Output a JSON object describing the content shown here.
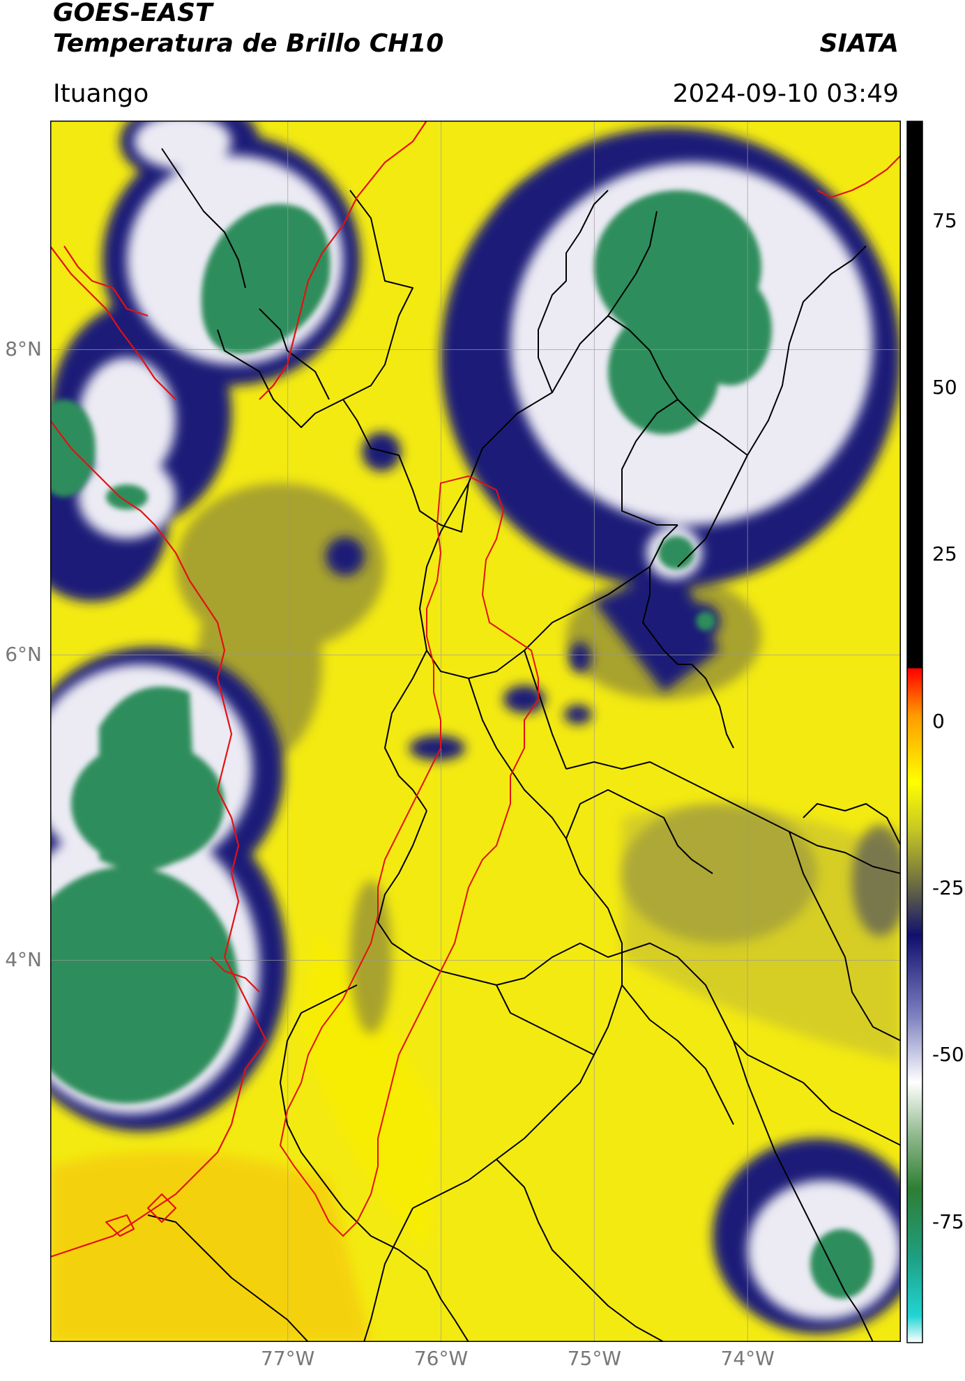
{
  "header": {
    "line1": "GOES-EAST",
    "line2": "Temperatura de Brillo CH10",
    "org": "SIATA",
    "place": "Ituango",
    "timestamp": "2024-09-10 03:49"
  },
  "map": {
    "lat_range": [
      1.5,
      9.5
    ],
    "lon_range": [
      -78.55,
      -73.0
    ],
    "lat_ticks": [
      {
        "value": 8,
        "label": "8°N"
      },
      {
        "value": 6,
        "label": "6°N"
      },
      {
        "value": 4,
        "label": "4°N"
      }
    ],
    "lon_ticks": [
      {
        "value": -77,
        "label": "77°W"
      },
      {
        "value": -76,
        "label": "76°W"
      },
      {
        "value": -75,
        "label": "75°W"
      },
      {
        "value": -74,
        "label": "74°W"
      }
    ],
    "grid": true,
    "colors": {
      "background_warm": "#f3ea12",
      "coastline": "#e41010",
      "borders": "#000000",
      "gridlines": "#9a9a9a"
    }
  },
  "colorbar": {
    "range": [
      -93,
      90
    ],
    "ticks": [
      {
        "value": 75,
        "label": "75"
      },
      {
        "value": 50,
        "label": "50"
      },
      {
        "value": 25,
        "label": "25"
      },
      {
        "value": 0,
        "label": "0"
      },
      {
        "value": -25,
        "label": "-25"
      },
      {
        "value": -50,
        "label": "-50"
      },
      {
        "value": -75,
        "label": "-75"
      }
    ],
    "stops": [
      {
        "t": -93,
        "color": "#ffffff"
      },
      {
        "t": -89,
        "color": "#22d4d4"
      },
      {
        "t": -80,
        "color": "#1f9e80"
      },
      {
        "t": -70,
        "color": "#2e7e33"
      },
      {
        "t": -62,
        "color": "#8fb88c"
      },
      {
        "t": -54,
        "color": "#ffffff"
      },
      {
        "t": -44,
        "color": "#7d80c0"
      },
      {
        "t": -32,
        "color": "#10106e"
      },
      {
        "t": -24,
        "color": "#707040"
      },
      {
        "t": -16,
        "color": "#c8c825"
      },
      {
        "t": -9,
        "color": "#ffff00"
      },
      {
        "t": 1,
        "color": "#ff9a00"
      },
      {
        "t": 8,
        "color": "#ff0000"
      },
      {
        "t": 8.1,
        "color": "#000000"
      },
      {
        "t": 90,
        "color": "#000000"
      }
    ]
  }
}
